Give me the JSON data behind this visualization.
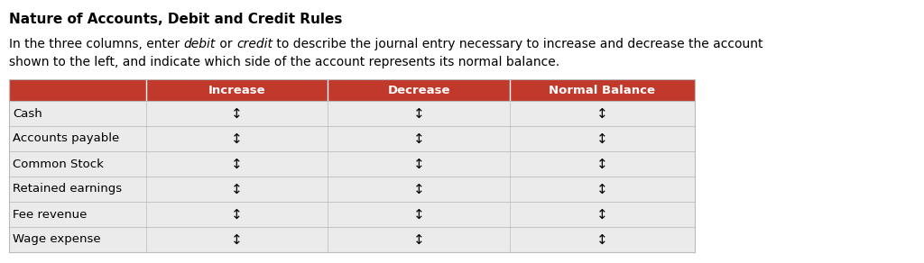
{
  "title": "Nature of Accounts, Debit and Credit Rules",
  "desc_line1_parts": [
    [
      "In the three columns, enter ",
      "normal"
    ],
    [
      "debit",
      "italic"
    ],
    [
      " or ",
      "normal"
    ],
    [
      "credit",
      "italic"
    ],
    [
      " to describe the journal entry necessary to increase and decrease the account",
      "normal"
    ]
  ],
  "desc_line2": "shown to the left, and indicate which side of the account represents its normal balance.",
  "header_bg": "#C0392B",
  "header_text_color": "#FFFFFF",
  "headers": [
    "",
    "Increase",
    "Decrease",
    "Normal Balance"
  ],
  "rows": [
    "Cash",
    "Accounts payable",
    "Common Stock",
    "Retained earnings",
    "Fee revenue",
    "Wage expense"
  ],
  "row_bg": "#EBEBEB",
  "border_color": "#BBBBBB",
  "arrow_symbol": "↕",
  "title_fontsize": 11,
  "desc_fontsize": 10,
  "header_fontsize": 9.5,
  "cell_fontsize": 9.5
}
